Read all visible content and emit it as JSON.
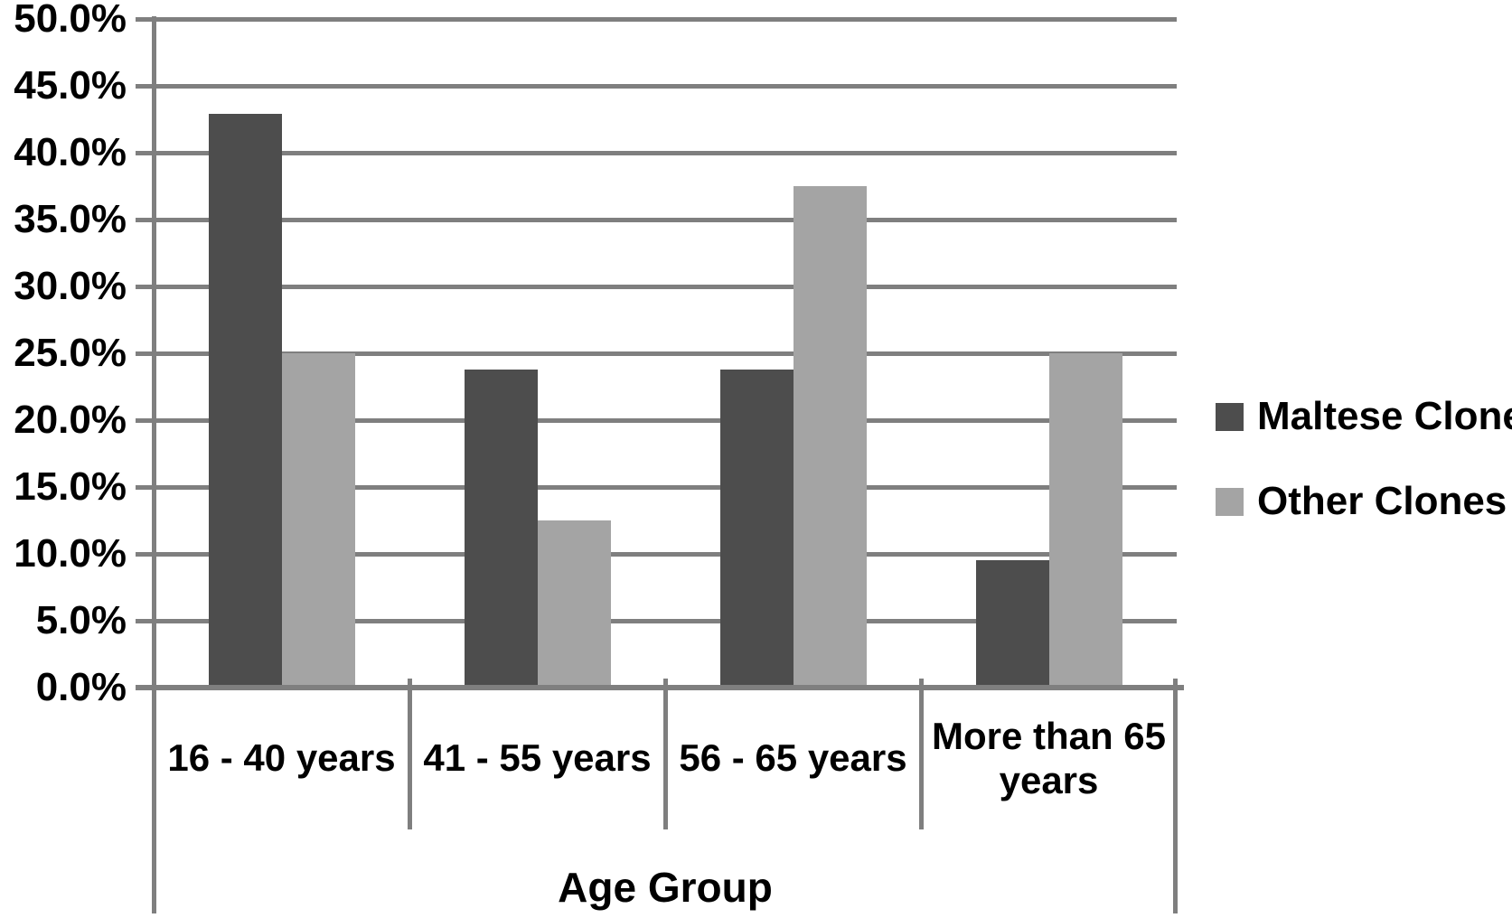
{
  "chart_data": {
    "type": "bar",
    "title": "",
    "categories": [
      "16 - 40 years",
      "41 - 55 years",
      "56 - 65 years",
      "More than 65 years"
    ],
    "series": [
      {
        "name": "Maltese Clone",
        "color": "#4d4d4d",
        "values": [
          42.9,
          23.8,
          23.8,
          9.5
        ]
      },
      {
        "name": "Other Clones",
        "color": "#a4a4a4",
        "values": [
          25.0,
          12.5,
          37.5,
          25.0
        ]
      }
    ],
    "xlabel": "Age Group",
    "ylabel": "",
    "ylim": [
      0,
      50
    ],
    "y_tick_step": 5,
    "y_tick_labels": [
      "0.0%",
      "5.0%",
      "10.0%",
      "15.0%",
      "20.0%",
      "25.0%",
      "30.0%",
      "35.0%",
      "40.0%",
      "45.0%",
      "50.0%"
    ],
    "grid": true,
    "gridline_color": "#7f7f7f",
    "legend_position": "right",
    "legend_entries": [
      "Maltese Clone",
      "Other Clones"
    ]
  }
}
